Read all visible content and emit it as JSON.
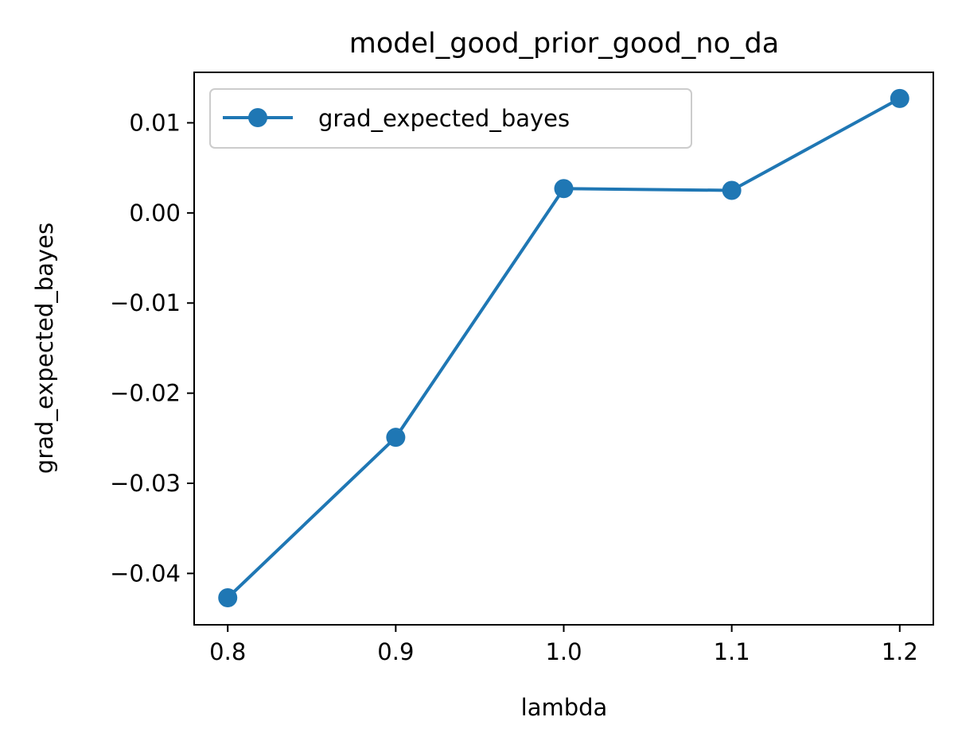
{
  "chart_data": {
    "type": "line",
    "title": "model_good_prior_good_no_da",
    "xlabel": "lambda",
    "ylabel": "grad_expected_bayes",
    "x": [
      0.8,
      0.9,
      1.0,
      1.1,
      1.2
    ],
    "x_tick_labels": [
      "0.8",
      "0.9",
      "1.0",
      "1.1",
      "1.2"
    ],
    "y_ticks": [
      0.01,
      0.0,
      -0.01,
      -0.02,
      -0.03,
      -0.04
    ],
    "y_tick_labels": [
      "0.01",
      "0.00",
      "−0.01",
      "−0.02",
      "−0.03",
      "−0.04"
    ],
    "xlim": [
      0.78,
      1.22
    ],
    "ylim": [
      -0.0457,
      0.0156
    ],
    "series": [
      {
        "name": "grad_expected_bayes",
        "values": [
          -0.0427,
          -0.0249,
          0.0027,
          0.0025,
          0.0127
        ],
        "color": "#1f77b4",
        "marker": "circle"
      }
    ],
    "legend": {
      "position": "upper-left",
      "entries": [
        "grad_expected_bayes"
      ]
    },
    "grid": false
  }
}
